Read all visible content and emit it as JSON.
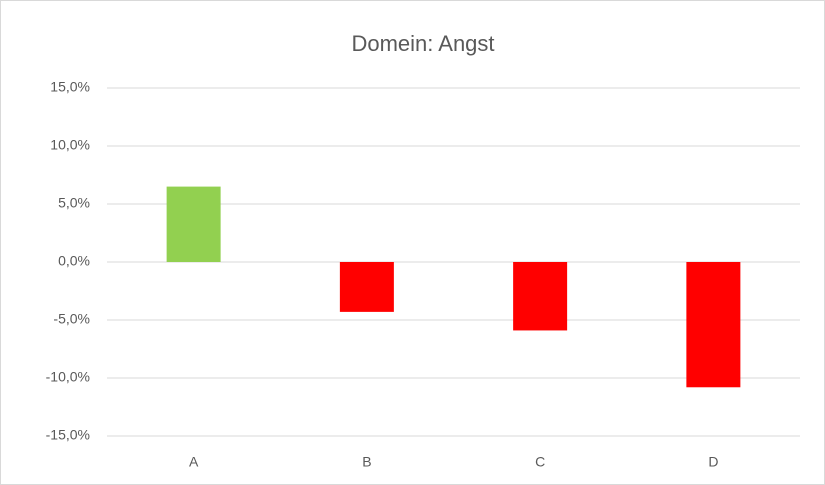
{
  "chart_data": {
    "type": "bar",
    "title": "Domein: Angst",
    "categories": [
      "A",
      "B",
      "C",
      "D"
    ],
    "values": [
      6.5,
      -4.3,
      -5.9,
      -10.8
    ],
    "colors": [
      "#92d050",
      "#ff0000",
      "#ff0000",
      "#ff0000"
    ],
    "ylim": [
      -15,
      15
    ],
    "yticks": [
      {
        "value": -15,
        "label": "-15,0%"
      },
      {
        "value": -10,
        "label": "-10,0%"
      },
      {
        "value": -5,
        "label": "-5,0%"
      },
      {
        "value": 0,
        "label": "0,0%"
      },
      {
        "value": 5,
        "label": "5,0%"
      },
      {
        "value": 10,
        "label": "10,0%"
      },
      {
        "value": 15,
        "label": "15,0%"
      }
    ],
    "grid": true
  }
}
